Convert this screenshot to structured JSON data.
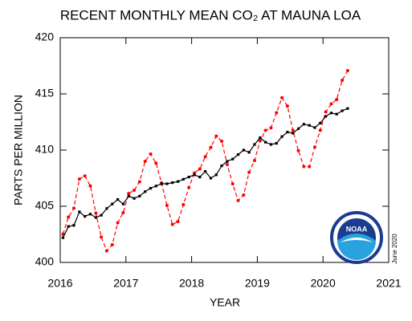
{
  "chart_data": {
    "type": "line",
    "title": "RECENT MONTHLY MEAN CO₂ AT MAUNA LOA",
    "x_label": "YEAR",
    "y_label": "PARTS PER MILLION",
    "annotation": "June 2020",
    "x": [
      2016.042,
      2016.125,
      2016.208,
      2016.292,
      2016.375,
      2016.458,
      2016.542,
      2016.625,
      2016.708,
      2016.792,
      2016.875,
      2016.958,
      2017.042,
      2017.125,
      2017.208,
      2017.292,
      2017.375,
      2017.458,
      2017.542,
      2017.625,
      2017.708,
      2017.792,
      2017.875,
      2017.958,
      2018.042,
      2018.125,
      2018.208,
      2018.292,
      2018.375,
      2018.458,
      2018.542,
      2018.625,
      2018.708,
      2018.792,
      2018.875,
      2018.958,
      2019.042,
      2019.125,
      2019.208,
      2019.292,
      2019.375,
      2019.458,
      2019.542,
      2019.625,
      2019.708,
      2019.792,
      2019.875,
      2019.958,
      2020.042,
      2020.125,
      2020.208,
      2020.292,
      2020.375
    ],
    "series": [
      {
        "color": "#ff0000",
        "values": [
          402.52,
          404.04,
          404.83,
          407.42,
          407.7,
          406.81,
          404.39,
          402.25,
          401.03,
          401.57,
          403.53,
          404.42,
          406.13,
          406.42,
          407.18,
          409.0,
          409.65,
          408.84,
          407.07,
          405.07,
          403.38,
          403.64,
          405.14,
          406.66,
          407.96,
          408.32,
          409.41,
          410.24,
          411.24,
          410.79,
          408.71,
          406.99,
          405.51,
          406.0,
          408.02,
          409.07,
          410.83,
          411.75,
          411.97,
          413.32,
          414.66,
          413.92,
          411.77,
          409.95,
          408.54,
          408.53,
          410.27,
          411.76,
          413.4,
          414.11,
          414.5,
          416.21,
          417.07
        ]
      },
      {
        "color": "#000000",
        "values": [
          402.2,
          403.2,
          403.3,
          404.5,
          404.1,
          404.3,
          404.0,
          404.2,
          404.8,
          405.2,
          405.6,
          405.2,
          405.9,
          405.7,
          405.9,
          406.3,
          406.6,
          406.8,
          407.0,
          407.0,
          407.1,
          407.2,
          407.4,
          407.6,
          407.8,
          407.6,
          408.1,
          407.5,
          407.8,
          408.6,
          409.0,
          409.2,
          409.6,
          410.0,
          409.8,
          410.5,
          411.1,
          410.7,
          410.5,
          410.6,
          411.2,
          411.6,
          411.5,
          411.9,
          412.3,
          412.2,
          412.0,
          412.4,
          413.0,
          413.3,
          413.2,
          413.5,
          413.7
        ]
      }
    ],
    "xlim": [
      2016,
      2021
    ],
    "xticks": [
      2016,
      2017,
      2018,
      2019,
      2020,
      2021
    ],
    "ylim": [
      400,
      420
    ],
    "yticks": [
      400,
      405,
      410,
      415,
      420
    ],
    "grid": false
  },
  "logo": {
    "label": "NOAA"
  }
}
